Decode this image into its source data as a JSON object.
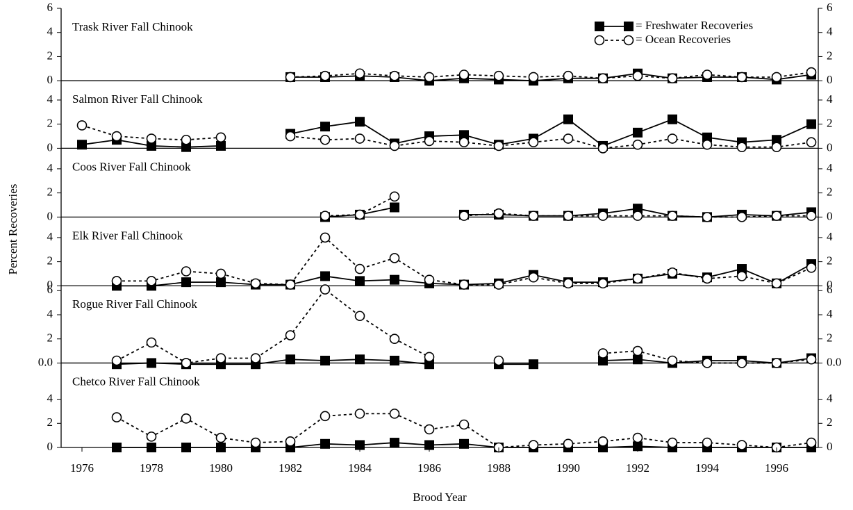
{
  "chart_data": {
    "type": "line",
    "xlabel": "Brood Year",
    "ylabel": "Percent Recoveries",
    "xlim": [
      1975.4,
      1997.2
    ],
    "xticks": [
      1976,
      1978,
      1980,
      1982,
      1984,
      1986,
      1988,
      1990,
      1992,
      1994,
      1996
    ],
    "x": [
      1976,
      1977,
      1978,
      1979,
      1980,
      1981,
      1982,
      1983,
      1984,
      1985,
      1986,
      1987,
      1988,
      1989,
      1990,
      1991,
      1992,
      1993,
      1994,
      1995,
      1996,
      1997
    ],
    "panels": [
      {
        "title": "Trask River Fall Chinook",
        "ylim": [
          0,
          6
        ],
        "yticks": [
          0,
          2,
          4,
          6
        ],
        "series": [
          {
            "name": "= Freshwater Recoveries",
            "color": "#000000",
            "style": "solid",
            "marker": "square",
            "values": [
              null,
              null,
              null,
              null,
              null,
              null,
              0.3,
              0.3,
              0.4,
              0.3,
              0.0,
              0.2,
              0.1,
              0.0,
              0.2,
              0.2,
              0.6,
              0.2,
              0.3,
              0.3,
              0.1,
              0.5
            ]
          },
          {
            "name": "= Ocean Recoveries",
            "color": "#000000",
            "style": "dashed",
            "marker": "circle",
            "values": [
              null,
              null,
              null,
              null,
              null,
              null,
              0.3,
              0.4,
              0.6,
              0.4,
              0.3,
              0.5,
              0.4,
              0.3,
              0.4,
              0.2,
              0.4,
              0.2,
              0.5,
              0.3,
              0.3,
              0.7
            ]
          }
        ]
      },
      {
        "title": "Salmon River Fall Chinook",
        "ylim": [
          0,
          5.6
        ],
        "yticks": [
          0,
          2,
          4
        ],
        "series": [
          {
            "color": "#000000",
            "style": "solid",
            "marker": "square",
            "values": [
              0.3,
              0.7,
              0.2,
              0.1,
              0.2,
              null,
              1.2,
              1.8,
              2.2,
              0.4,
              1.0,
              1.1,
              0.3,
              0.8,
              2.4,
              0.2,
              1.3,
              2.4,
              0.9,
              0.5,
              0.7,
              2.0
            ]
          },
          {
            "color": "#000000",
            "style": "dashed",
            "marker": "circle",
            "values": [
              1.9,
              1.0,
              0.8,
              0.7,
              0.9,
              null,
              1.0,
              0.7,
              0.8,
              0.2,
              0.6,
              0.5,
              0.2,
              0.5,
              0.8,
              0.0,
              0.3,
              0.8,
              0.3,
              0.1,
              0.1,
              0.5
            ]
          }
        ]
      },
      {
        "title": "Coos River Fall Chinook",
        "ylim": [
          0,
          5.7
        ],
        "yticks": [
          0,
          2,
          4
        ],
        "series": [
          {
            "color": "#000000",
            "style": "solid",
            "marker": "square",
            "values": [
              null,
              null,
              null,
              null,
              null,
              null,
              null,
              0.0,
              0.2,
              0.8,
              null,
              0.2,
              0.2,
              0.1,
              0.1,
              0.3,
              0.7,
              0.1,
              0.0,
              0.2,
              0.1,
              0.4
            ]
          },
          {
            "color": "#000000",
            "style": "dashed",
            "marker": "circle",
            "values": [
              null,
              null,
              null,
              null,
              null,
              null,
              null,
              0.1,
              0.2,
              1.7,
              null,
              0.1,
              0.3,
              0.1,
              0.1,
              0.1,
              0.1,
              0.1,
              0.0,
              0.0,
              0.1,
              0.1
            ]
          }
        ]
      },
      {
        "title": "Elk River Fall Chinook",
        "ylim": [
          0,
          5.7
        ],
        "yticks": [
          0,
          2,
          4
        ],
        "series": [
          {
            "color": "#000000",
            "style": "solid",
            "marker": "square",
            "values": [
              null,
              0.0,
              0.0,
              0.3,
              0.3,
              0.1,
              0.1,
              0.8,
              0.4,
              0.5,
              0.2,
              0.1,
              0.2,
              0.9,
              0.3,
              0.3,
              0.6,
              1.0,
              0.7,
              1.4,
              0.2,
              1.8
            ]
          },
          {
            "color": "#000000",
            "style": "dashed",
            "marker": "circle",
            "values": [
              null,
              0.4,
              0.4,
              1.2,
              1.0,
              0.2,
              0.1,
              4.0,
              1.4,
              2.3,
              0.5,
              0.1,
              0.1,
              0.7,
              0.2,
              0.2,
              0.6,
              1.1,
              0.6,
              0.8,
              0.2,
              1.5
            ]
          }
        ]
      },
      {
        "title": "Rogue River Fall Chinook",
        "ylim": [
          0,
          6.4
        ],
        "yticks": [
          {
            "value": 0,
            "label": "0.0"
          },
          2,
          4,
          6
        ],
        "series": [
          {
            "color": "#000000",
            "style": "solid",
            "marker": "square",
            "values": [
              null,
              -0.1,
              0.0,
              -0.1,
              -0.1,
              -0.1,
              0.3,
              0.2,
              0.3,
              0.2,
              -0.1,
              null,
              -0.1,
              -0.1,
              null,
              0.2,
              0.3,
              0.0,
              0.2,
              0.2,
              0.0,
              0.4
            ]
          },
          {
            "color": "#000000",
            "style": "dashed",
            "marker": "circle",
            "values": [
              null,
              0.2,
              1.7,
              0.0,
              0.4,
              0.4,
              2.3,
              6.1,
              3.9,
              2.0,
              0.5,
              null,
              0.2,
              null,
              null,
              0.8,
              1.0,
              0.2,
              0.0,
              0.0,
              0.0,
              0.3
            ]
          }
        ]
      },
      {
        "title": "Chetco River Fall Chinook",
        "ylim": [
          0,
          7.0
        ],
        "yticks": [
          0,
          2,
          4
        ],
        "series": [
          {
            "color": "#000000",
            "style": "solid",
            "marker": "square",
            "values": [
              null,
              0.0,
              0.0,
              0.0,
              0.0,
              0.0,
              0.0,
              0.3,
              0.2,
              0.4,
              0.2,
              0.3,
              0.0,
              0.0,
              0.0,
              0.0,
              0.1,
              0.0,
              0.0,
              0.0,
              0.0,
              0.0
            ]
          },
          {
            "color": "#000000",
            "style": "dashed",
            "marker": "circle",
            "values": [
              null,
              2.5,
              0.9,
              2.4,
              0.8,
              0.4,
              0.5,
              2.6,
              2.8,
              2.8,
              1.5,
              1.9,
              0.0,
              0.2,
              0.3,
              0.5,
              0.8,
              0.4,
              0.4,
              0.2,
              0.0,
              0.4
            ]
          }
        ]
      }
    ]
  }
}
